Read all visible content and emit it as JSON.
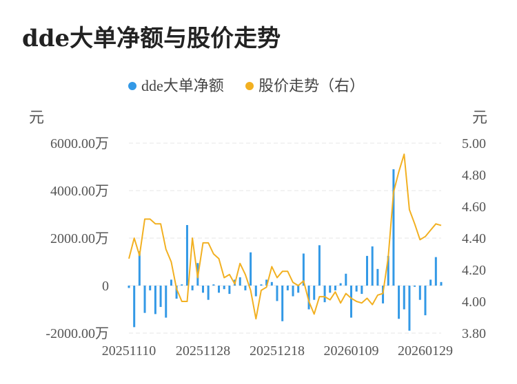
{
  "chart_data": {
    "type": "bar+line",
    "title": "dde大单净额与股价走势",
    "legend": [
      {
        "label": "dde大单净额",
        "color": "#3399e6"
      },
      {
        "label": "股价走势（右）",
        "color": "#f2b021"
      }
    ],
    "left_axis": {
      "unit": "元",
      "min": -2000,
      "max": 6000,
      "ticks": [
        {
          "value": 6000,
          "label": "6000.00万"
        },
        {
          "value": 4000,
          "label": "4000.00万"
        },
        {
          "value": 2000,
          "label": "2000.00万"
        },
        {
          "value": 0,
          "label": "0"
        },
        {
          "value": -2000,
          "label": "-2000.00万"
        }
      ]
    },
    "right_axis": {
      "unit": "元",
      "min": 3.8,
      "max": 5.0,
      "ticks": [
        {
          "value": 5.0,
          "label": "5.00"
        },
        {
          "value": 4.8,
          "label": "4.80"
        },
        {
          "value": 4.6,
          "label": "4.60"
        },
        {
          "value": 4.4,
          "label": "4.40"
        },
        {
          "value": 4.2,
          "label": "4.20"
        },
        {
          "value": 4.0,
          "label": "4.00"
        },
        {
          "value": 3.8,
          "label": "3.80"
        }
      ]
    },
    "x_tick_labels": [
      {
        "index": 0,
        "label": "20251110"
      },
      {
        "index": 14,
        "label": "20251128"
      },
      {
        "index": 28,
        "label": "20251218"
      },
      {
        "index": 42,
        "label": "20260109"
      },
      {
        "index": 56,
        "label": "20260129"
      }
    ],
    "series": [
      {
        "name": "dde大单净额",
        "kind": "bar",
        "values": [
          -100,
          -1750,
          1450,
          -1150,
          -200,
          -1200,
          -900,
          -1350,
          250,
          -550,
          50,
          2550,
          -200,
          950,
          -300,
          -600,
          50,
          -300,
          -150,
          -350,
          250,
          350,
          -200,
          1400,
          -450,
          50,
          250,
          150,
          -650,
          -1500,
          -200,
          -450,
          -300,
          1350,
          -1000,
          -600,
          1700,
          -700,
          -300,
          -200,
          100,
          500,
          -1350,
          -250,
          -350,
          1250,
          1650,
          700,
          -750,
          1250,
          4900,
          -1400,
          -1000,
          -1900,
          -50,
          -600,
          -1250,
          250,
          1200,
          150
        ]
      },
      {
        "name": "股价走势（右）",
        "kind": "line",
        "values": [
          4.27,
          4.4,
          4.29,
          4.52,
          4.52,
          4.49,
          4.49,
          4.33,
          4.25,
          4.08,
          4.0,
          4.0,
          4.4,
          4.15,
          4.37,
          4.37,
          4.3,
          4.27,
          4.15,
          4.17,
          4.11,
          4.24,
          4.17,
          4.07,
          3.89,
          4.07,
          4.09,
          4.22,
          4.15,
          4.19,
          4.19,
          4.12,
          4.1,
          4.13,
          4.0,
          3.92,
          4.03,
          4.03,
          4.01,
          4.06,
          3.99,
          4.05,
          4.02,
          4.0,
          3.99,
          4.02,
          3.98,
          4.04,
          4.05,
          4.28,
          4.69,
          4.82,
          4.93,
          4.58,
          4.49,
          4.39,
          4.41,
          4.45,
          4.49,
          4.48
        ]
      }
    ],
    "grid": true
  }
}
